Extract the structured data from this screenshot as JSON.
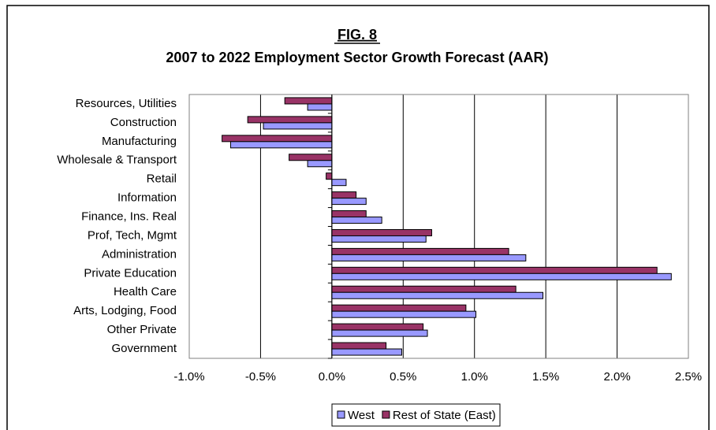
{
  "chart_data": {
    "type": "bar",
    "orientation": "horizontal",
    "figure_label": "FIG. 8",
    "title": "2007 to 2022 Employment Sector Growth Forecast (AAR)",
    "categories": [
      "Resources, Utilities",
      "Construction",
      "Manufacturing",
      "Wholesale & Transport",
      "Retail",
      "Information",
      "Finance, Ins. Real",
      "Prof, Tech, Mgmt",
      "Administration",
      "Private Education",
      "Health Care",
      "Arts, Lodging, Food",
      "Other Private",
      "Government"
    ],
    "series": [
      {
        "name": "West",
        "color": "#9999ff",
        "values": [
          -0.17,
          -0.48,
          -0.71,
          -0.17,
          0.1,
          0.24,
          0.35,
          0.66,
          1.36,
          2.38,
          1.48,
          1.01,
          0.67,
          0.49
        ]
      },
      {
        "name": "Rest of State (East)",
        "color": "#993366",
        "values": [
          -0.33,
          -0.59,
          -0.77,
          -0.3,
          -0.04,
          0.17,
          0.24,
          0.7,
          1.24,
          2.28,
          1.29,
          0.94,
          0.64,
          0.38
        ]
      }
    ],
    "xlim": [
      -1.0,
      2.5
    ],
    "xticks": [
      {
        "value": -1.0,
        "label": "-1.0%"
      },
      {
        "value": -0.5,
        "label": "-0.5%"
      },
      {
        "value": 0,
        "label": "0.0%"
      },
      {
        "value": 0.5,
        "label": "0.5%"
      },
      {
        "value": 1.0,
        "label": "1.0%"
      },
      {
        "value": 1.5,
        "label": "1.5%"
      },
      {
        "value": 2.0,
        "label": "2.0%"
      },
      {
        "value": 2.5,
        "label": "2.5%"
      }
    ],
    "grid": true,
    "legend": "bottom"
  }
}
